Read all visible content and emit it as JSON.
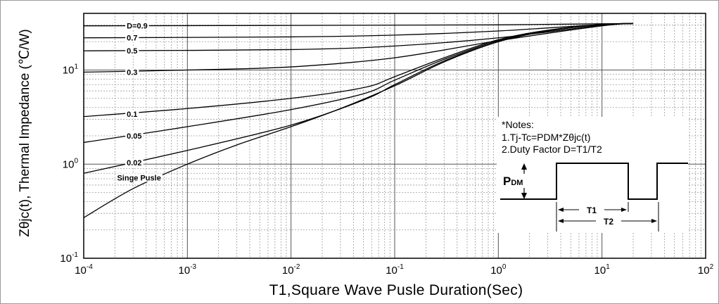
{
  "chart_data": {
    "type": "line",
    "xlabel": "T1,Square Wave Pusle Duration(Sec)",
    "ylabel": "Zθjc(t), Thermal Impedance (℃/W)",
    "xscale": "log",
    "yscale": "log",
    "xlim": [
      0.0001,
      100
    ],
    "ylim": [
      0.1,
      40
    ],
    "grid": true,
    "x_ticks": [
      {
        "base": "10",
        "exp": "-4",
        "value": 0.0001
      },
      {
        "base": "10",
        "exp": "-3",
        "value": 0.001
      },
      {
        "base": "10",
        "exp": "-2",
        "value": 0.01
      },
      {
        "base": "10",
        "exp": "-1",
        "value": 0.1
      },
      {
        "base": "10",
        "exp": "0",
        "value": 1
      },
      {
        "base": "10",
        "exp": "1",
        "value": 10
      },
      {
        "base": "10",
        "exp": "2",
        "value": 100
      }
    ],
    "y_ticks": [
      {
        "base": "10",
        "exp": "-1",
        "value": 0.1
      },
      {
        "base": "10",
        "exp": "0",
        "value": 1
      },
      {
        "base": "10",
        "exp": "1",
        "value": 10
      }
    ],
    "series": [
      {
        "name": "D=0.9",
        "x": [
          0.0001,
          0.01,
          1,
          10,
          20
        ],
        "y": [
          29.5,
          29.8,
          30.2,
          31.0,
          31.2
        ]
      },
      {
        "name": "0.7",
        "x": [
          0.0001,
          0.01,
          0.1,
          1,
          10,
          20
        ],
        "y": [
          22.0,
          22.5,
          23.5,
          26.0,
          30.5,
          31.2
        ]
      },
      {
        "name": "0.5",
        "x": [
          0.0001,
          0.01,
          0.1,
          1,
          10,
          20
        ],
        "y": [
          16.0,
          16.5,
          18.0,
          22.0,
          30.0,
          31.2
        ]
      },
      {
        "name": "0.3",
        "x": [
          0.0001,
          0.001,
          0.01,
          0.1,
          1,
          10,
          20
        ],
        "y": [
          9.5,
          10.0,
          10.8,
          13.5,
          20.5,
          29.5,
          31.2
        ]
      },
      {
        "name": "0.1",
        "x": [
          0.0001,
          0.001,
          0.01,
          0.05,
          0.1,
          0.3,
          1,
          3,
          10,
          20
        ],
        "y": [
          3.2,
          3.9,
          5.0,
          6.5,
          8.5,
          13.5,
          21.0,
          26.5,
          30.5,
          31.2
        ]
      },
      {
        "name": "0.05",
        "x": [
          0.0001,
          0.001,
          0.01,
          0.05,
          0.1,
          0.3,
          1,
          3,
          10,
          20
        ],
        "y": [
          1.7,
          2.5,
          3.8,
          5.6,
          7.8,
          13.0,
          20.5,
          26.0,
          30.5,
          31.2
        ]
      },
      {
        "name": "0.02",
        "x": [
          0.0001,
          0.001,
          0.01,
          0.05,
          0.1,
          0.3,
          1,
          3,
          10,
          20
        ],
        "y": [
          0.8,
          1.4,
          2.6,
          4.8,
          7.0,
          12.5,
          20.0,
          26.0,
          30.5,
          31.2
        ]
      },
      {
        "name": "Singe Pusle",
        "x": [
          0.0001,
          0.0003,
          0.001,
          0.003,
          0.01,
          0.03,
          0.1,
          0.3,
          1,
          3,
          10,
          20
        ],
        "y": [
          0.27,
          0.55,
          1.0,
          1.6,
          2.5,
          3.9,
          6.8,
          12.2,
          20.0,
          26.0,
          30.5,
          31.2
        ]
      }
    ],
    "curve_labels": [
      {
        "text": "D=0.9",
        "x": 0.00026,
        "y": 29.5
      },
      {
        "text": "0.7",
        "x": 0.00026,
        "y": 22.0
      },
      {
        "text": "0.5",
        "x": 0.00026,
        "y": 16.0
      },
      {
        "text": "0.3",
        "x": 0.00026,
        "y": 9.5
      },
      {
        "text": "0.1",
        "x": 0.00026,
        "y": 3.4
      },
      {
        "text": "0.05",
        "x": 0.00026,
        "y": 2.0
      },
      {
        "text": "0.02",
        "x": 0.00026,
        "y": 1.04
      },
      {
        "text": "Singe Pusle",
        "x": 0.00021,
        "y": 0.72
      }
    ],
    "notes": {
      "title": "*Notes:",
      "line1": "1.Tj-Tc=PDM*Zθjc(t)",
      "line2": "2.Duty Factor D=T1/T2"
    },
    "inset": {
      "pdm_main": "P",
      "pdm_sub": "DM",
      "t1": "T1",
      "t2": "T2"
    }
  }
}
